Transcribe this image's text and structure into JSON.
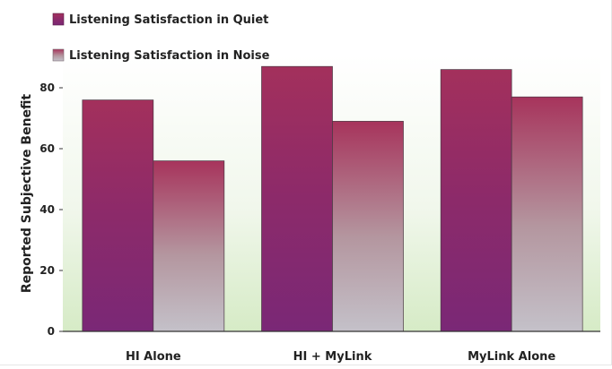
{
  "chart_data": {
    "type": "bar",
    "categories": [
      "HI Alone",
      "HI + MyLink",
      "MyLink Alone"
    ],
    "series": [
      {
        "name": "Listening Satisfaction in Quiet",
        "values": [
          76,
          87,
          86
        ],
        "color": "#8a2a6c"
      },
      {
        "name": "Listening Satisfaction in Noise",
        "values": [
          56,
          69,
          77
        ],
        "color": "#a2345f"
      }
    ],
    "xlabel": "",
    "ylabel": "Reported Subjective Benefit",
    "ylim": [
      0,
      90
    ],
    "yticks": [
      0,
      20,
      40,
      60,
      80
    ],
    "grid": false,
    "legend_position": "top-left",
    "plot_background": "#d8ecc8"
  }
}
